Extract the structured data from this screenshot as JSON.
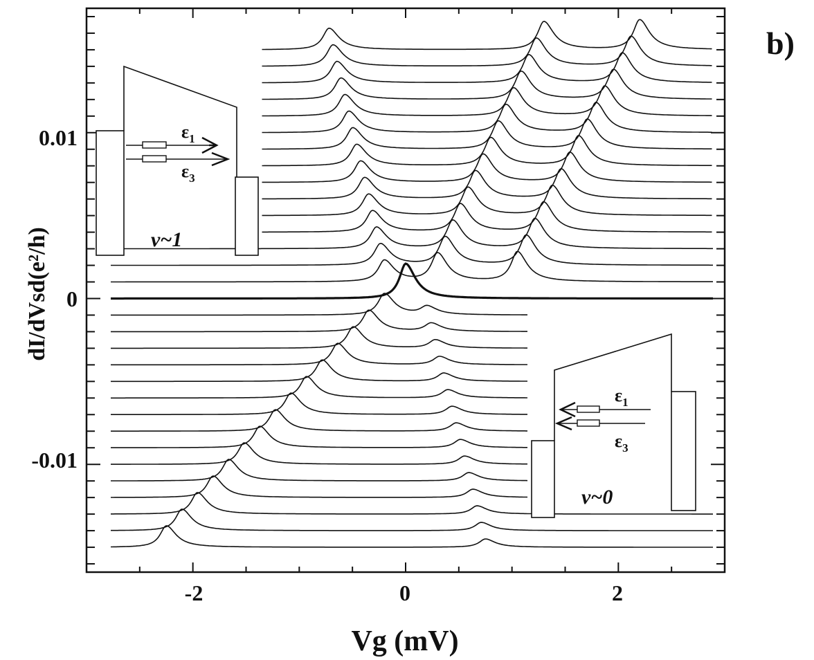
{
  "panel_label": "b)",
  "chart_data": {
    "type": "line",
    "title": "",
    "xlabel": "Vg (mV)",
    "ylabel": "dI/dVsd(e²/h)",
    "xlim": [
      -3.0,
      3.0
    ],
    "ylim": [
      -0.0165,
      0.0175
    ],
    "x_ticks": [
      -2,
      0,
      2
    ],
    "x_tick_labels": [
      "-2",
      "0",
      "2"
    ],
    "y_ticks": [
      0.01,
      0,
      -0.01
    ],
    "y_tick_labels": [
      "0.01",
      "0",
      "-0.01"
    ],
    "grid": false,
    "legend": "none",
    "colors": {
      "line": "#111111",
      "axis": "#111111",
      "background": "#ffffff"
    },
    "trace_offset_step": 0.001,
    "n_traces_above": 15,
    "n_traces_below": 15,
    "upper_traces_x_start": -1.35,
    "lower_traces_x_end": 1.15,
    "main_peak": {
      "x": 0.0,
      "height": 0.0021
    },
    "upper_traces": {
      "peak_a": {
        "x_at_row1": -0.2,
        "x_at_row15": -0.72,
        "height": 0.0013
      },
      "peak_b": {
        "x_at_row1": 0.3,
        "x_at_row15": 1.3,
        "height": 0.0017
      },
      "peak_c": {
        "x_at_row1": 1.05,
        "x_at_row15": 2.2,
        "height": 0.0018
      }
    },
    "lower_traces": {
      "peak_a": {
        "x_at_row1": -0.2,
        "x_at_row15": -2.25,
        "height": 0.0013
      },
      "peak_b": {
        "x_at_row1": 0.2,
        "x_at_row15": 0.75,
        "height": 0.0005
      }
    }
  },
  "insets": {
    "upper": {
      "level1": "ε",
      "sub1": "1",
      "level2": "ε",
      "sub2": "3",
      "filling": "ν~1"
    },
    "lower": {
      "level1": "ε",
      "sub1": "1",
      "level2": "ε",
      "sub2": "3",
      "filling": "ν~0"
    }
  }
}
